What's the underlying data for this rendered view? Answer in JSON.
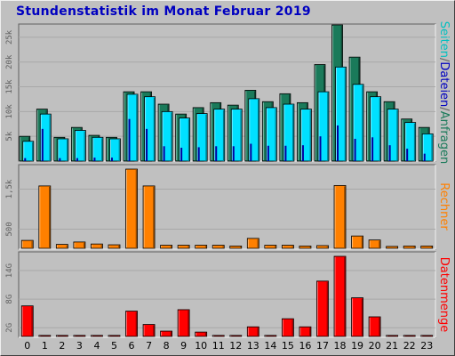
{
  "title": "Stundenstatistik im Monat Februar 2019",
  "colors": {
    "background": "#c0c0c0",
    "title": "#0000c0",
    "anfragen": "#1a7a5a",
    "dateien": "#00e0ff",
    "seiten": "#0000a0",
    "rechner": "#ff8000",
    "datenmenge": "#ff0000"
  },
  "side_labels": {
    "top": [
      {
        "text": "Seiten",
        "color": "#00c0c0"
      },
      {
        "text": "/",
        "color": "#606060"
      },
      {
        "text": "Dateien",
        "color": "#0000c0"
      },
      {
        "text": "/",
        "color": "#606060"
      },
      {
        "text": "Anfragen",
        "color": "#1a7a5a"
      }
    ],
    "middle": "Rechner",
    "bottom": "Datenmenge"
  },
  "chart_data": [
    {
      "type": "bar",
      "panel": "requests",
      "categories": [
        "0",
        "1",
        "2",
        "3",
        "4",
        "5",
        "6",
        "7",
        "8",
        "9",
        "10",
        "11",
        "12",
        "13",
        "14",
        "15",
        "16",
        "17",
        "18",
        "19",
        "20",
        "21",
        "22",
        "23"
      ],
      "yticks": [
        "5k",
        "10k",
        "15k",
        "20k",
        "25k"
      ],
      "ytick_values": [
        5000,
        10000,
        15000,
        20000,
        25000
      ],
      "ylim": [
        0,
        27500
      ],
      "series": [
        {
          "name": "Anfragen",
          "values": [
            5000,
            10500,
            4800,
            6800,
            5200,
            4800,
            14000,
            14000,
            11500,
            9500,
            10800,
            11800,
            11300,
            14300,
            12000,
            13600,
            11800,
            19500,
            27500,
            21000,
            14000,
            12000,
            8500,
            6800
          ]
        },
        {
          "name": "Dateien",
          "values": [
            4000,
            9500,
            4500,
            6200,
            4800,
            4500,
            13500,
            13000,
            10000,
            8700,
            9600,
            10500,
            10500,
            12600,
            10800,
            11500,
            10500,
            14000,
            19000,
            15500,
            13000,
            10500,
            7800,
            5500
          ]
        },
        {
          "name": "Seiten",
          "values": [
            600,
            6500,
            600,
            600,
            700,
            700,
            8500,
            6500,
            3000,
            2700,
            2800,
            3000,
            3000,
            3500,
            3100,
            3100,
            3200,
            5000,
            7200,
            4500,
            4800,
            3200,
            2500,
            1500
          ]
        }
      ]
    },
    {
      "type": "bar",
      "panel": "rechner",
      "categories": [
        "0",
        "1",
        "2",
        "3",
        "4",
        "5",
        "6",
        "7",
        "8",
        "9",
        "10",
        "11",
        "12",
        "13",
        "14",
        "15",
        "16",
        "17",
        "18",
        "19",
        "20",
        "21",
        "22",
        "23"
      ],
      "yticks": [
        "500",
        "1,5k"
      ],
      "ytick_values": [
        500,
        1500
      ],
      "ylim": [
        0,
        2000
      ],
      "series": [
        {
          "name": "Rechner",
          "values": [
            220,
            1580,
            120,
            180,
            130,
            110,
            2000,
            1580,
            100,
            100,
            100,
            100,
            80,
            270,
            100,
            100,
            80,
            90,
            1590,
            330,
            230,
            70,
            80,
            80
          ]
        }
      ]
    },
    {
      "type": "bar",
      "panel": "datenmenge",
      "categories": [
        "0",
        "1",
        "2",
        "3",
        "4",
        "5",
        "6",
        "7",
        "8",
        "9",
        "10",
        "11",
        "12",
        "13",
        "14",
        "15",
        "16",
        "17",
        "18",
        "19",
        "20",
        "21",
        "22",
        "23"
      ],
      "yticks": [
        "2G",
        "8G",
        "14G"
      ],
      "ytick_values": [
        2,
        8,
        14
      ],
      "ylim": [
        0,
        17
      ],
      "series": [
        {
          "name": "Datenmenge",
          "values": [
            6.6,
            0.4,
            0.4,
            0.4,
            0.4,
            0.4,
            5.5,
            2.7,
            1.3,
            5.8,
            1.1,
            0.4,
            0.4,
            2.2,
            0.4,
            3.9,
            2.2,
            11.8,
            17.0,
            8.3,
            4.3,
            0.4,
            0.4,
            0.4
          ]
        }
      ]
    }
  ]
}
